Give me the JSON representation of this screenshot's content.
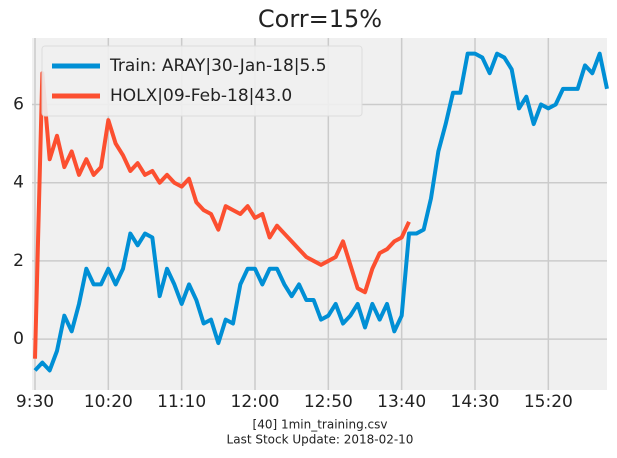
{
  "chart_data": {
    "type": "line",
    "title": "Corr=15%",
    "footer": [
      "[40] 1min_training.csv",
      "Last Stock Update: 2018-02-10"
    ],
    "x": [
      570,
      575,
      580,
      585,
      590,
      595,
      600,
      605,
      610,
      615,
      620,
      625,
      630,
      635,
      640,
      645,
      650,
      655,
      660,
      665,
      670,
      675,
      680,
      685,
      690,
      695,
      700,
      705,
      710,
      715,
      720,
      725,
      730,
      735,
      740,
      745,
      750,
      755,
      760,
      765,
      770,
      775,
      780,
      785,
      790,
      795,
      800,
      805,
      810,
      815,
      820,
      825,
      830,
      835,
      840,
      845,
      850,
      855,
      860,
      865,
      870,
      875,
      880,
      885,
      890,
      895,
      900,
      905,
      910,
      915,
      920,
      925,
      930,
      935,
      940,
      945,
      950,
      955,
      960
    ],
    "series": [
      {
        "name": "Train: ARAY|30-Jan-18|5.5",
        "color": "#008fd5",
        "values": [
          -0.8,
          -0.6,
          -0.8,
          -0.3,
          0.6,
          0.2,
          0.9,
          1.8,
          1.4,
          1.4,
          1.8,
          1.4,
          1.8,
          2.7,
          2.4,
          2.7,
          2.6,
          1.1,
          1.8,
          1.4,
          0.9,
          1.4,
          1.0,
          0.4,
          0.5,
          -0.1,
          0.5,
          0.4,
          1.4,
          1.8,
          1.8,
          1.4,
          1.8,
          1.8,
          1.4,
          1.1,
          1.4,
          1.0,
          1.0,
          0.5,
          0.6,
          0.9,
          0.4,
          0.6,
          0.9,
          0.3,
          0.9,
          0.5,
          0.9,
          0.2,
          0.6,
          2.7,
          2.7,
          2.8,
          3.6,
          4.8,
          5.5,
          6.3,
          6.3,
          7.3,
          7.3,
          7.2,
          6.8,
          7.3,
          7.2,
          6.9,
          5.9,
          6.2,
          5.5,
          6.0,
          5.9,
          6.0,
          6.4,
          6.4,
          6.4,
          7.0,
          6.8,
          7.3,
          6.4
        ]
      },
      {
        "name": "HOLX|09-Feb-18|43.0",
        "color": "#fc4f30",
        "values": [
          -0.5,
          6.8,
          4.6,
          5.2,
          4.4,
          4.8,
          4.2,
          4.6,
          4.2,
          4.4,
          5.6,
          5.0,
          4.7,
          4.3,
          4.5,
          4.2,
          4.3,
          4.0,
          4.2,
          4.0,
          3.9,
          4.1,
          3.5,
          3.3,
          3.2,
          2.8,
          3.4,
          3.3,
          3.2,
          3.4,
          3.1,
          3.2,
          2.6,
          2.9,
          2.7,
          2.5,
          2.3,
          2.1,
          2.0,
          1.9,
          2.0,
          2.1,
          2.5,
          1.9,
          1.3,
          1.2,
          1.8,
          2.2,
          2.3,
          2.5,
          2.6,
          3.0,
          null,
          null,
          null,
          null,
          null,
          null,
          null,
          null,
          null,
          null,
          null,
          null,
          null,
          null,
          null,
          null,
          null,
          null,
          null,
          null,
          null,
          null,
          null,
          null,
          null,
          null,
          null
        ]
      }
    ],
    "xlim": [
      570,
      960
    ],
    "xticks": [
      {
        "value": 570,
        "label": "9:30"
      },
      {
        "value": 620,
        "label": "10:20"
      },
      {
        "value": 670,
        "label": "11:10"
      },
      {
        "value": 720,
        "label": "12:00"
      },
      {
        "value": 770,
        "label": "12:50"
      },
      {
        "value": 820,
        "label": "13:40"
      },
      {
        "value": 870,
        "label": "14:30"
      },
      {
        "value": 920,
        "label": "15:20"
      }
    ],
    "ylim": [
      -1.3,
      7.7
    ],
    "yticks": [
      0,
      2,
      4,
      6
    ],
    "grid": true,
    "legend": "upper left"
  }
}
